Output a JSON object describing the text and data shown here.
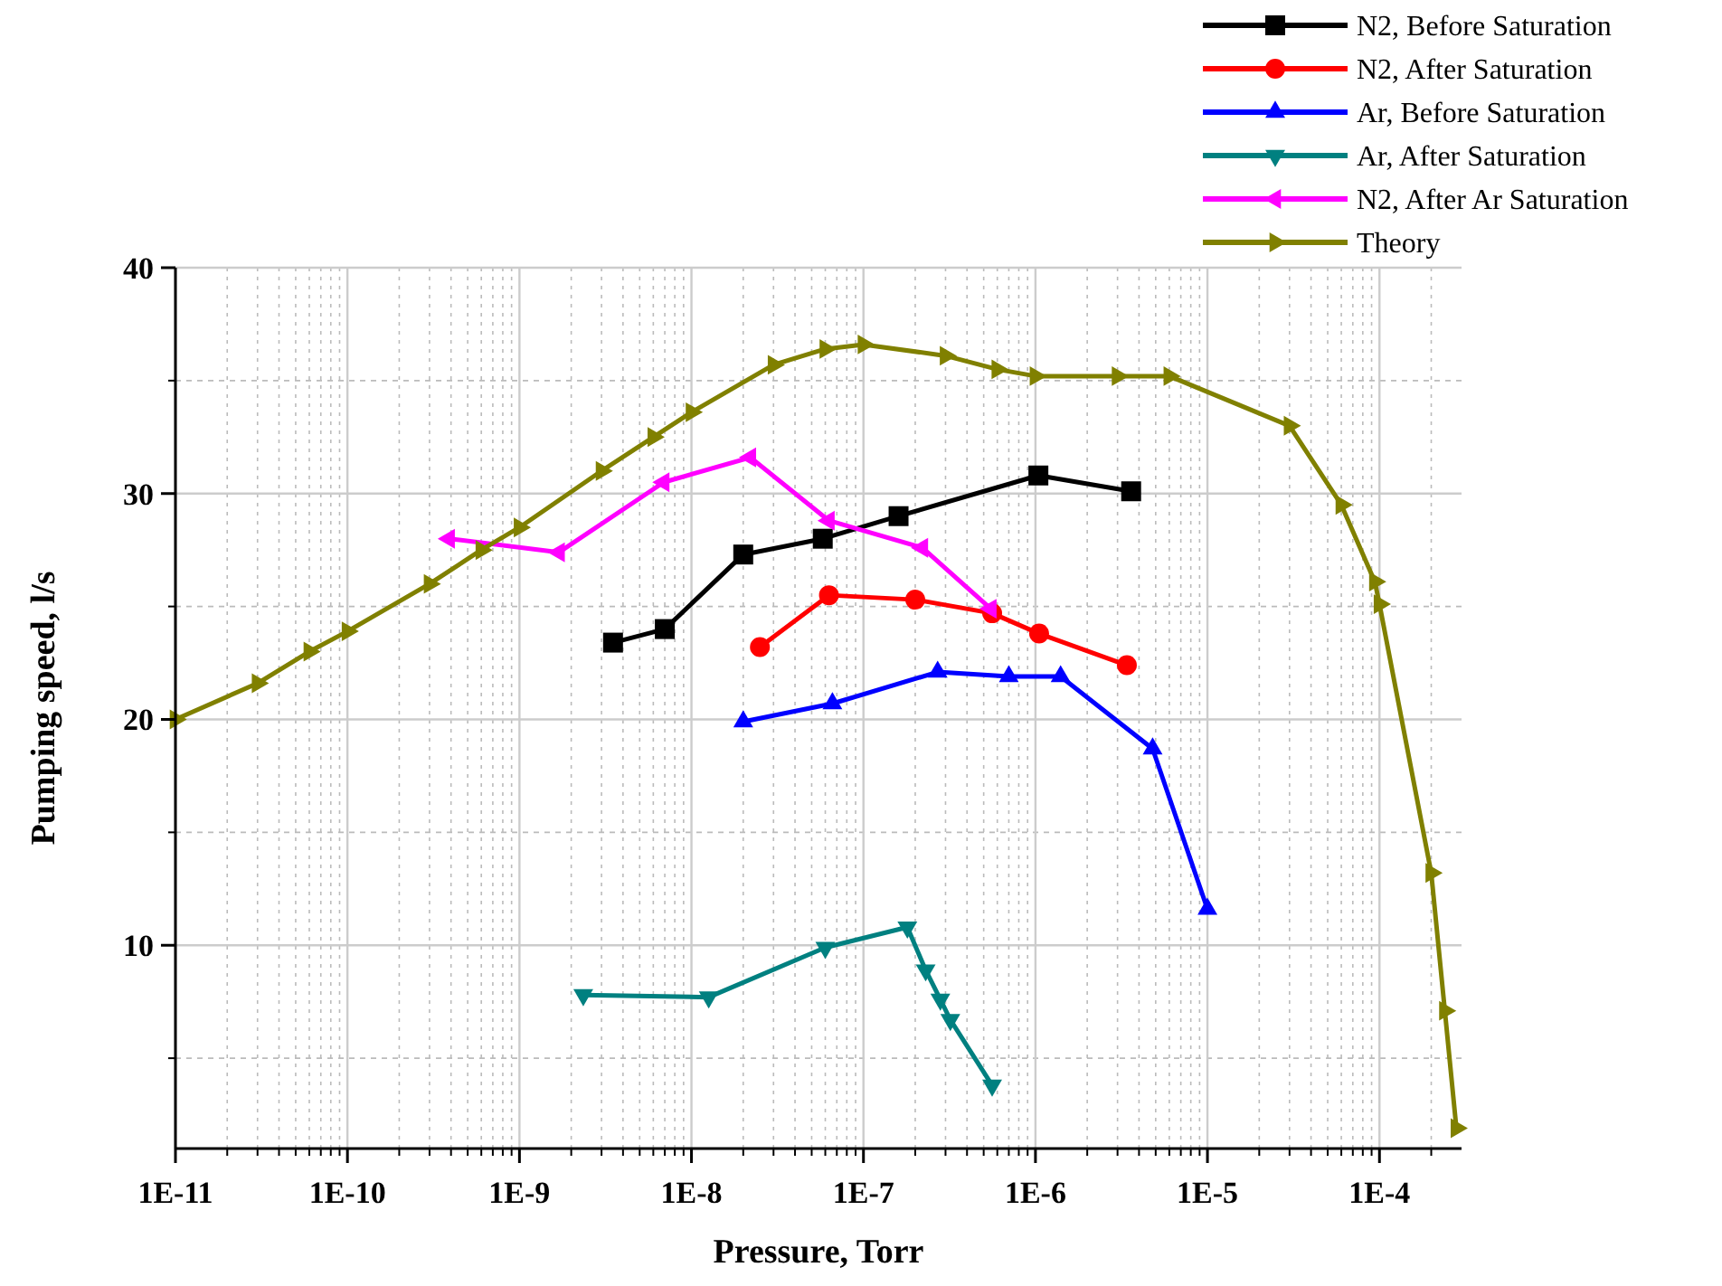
{
  "chart_data": {
    "type": "line",
    "xlabel": "Pressure, Torr",
    "ylabel": "Pumping speed, l/s",
    "log": "x",
    "grid": true,
    "legend": "top right",
    "line_style": "solid",
    "xlim": [
      1e-11,
      0.0003
    ],
    "xticks": [
      {
        "value": 1e-11,
        "label": "1E-11"
      },
      {
        "value": 1e-10,
        "label": "1E-10"
      },
      {
        "value": 1e-09,
        "label": "1E-9"
      },
      {
        "value": 1e-08,
        "label": "1E-8"
      },
      {
        "value": 1e-07,
        "label": "1E-7"
      },
      {
        "value": 1e-06,
        "label": "1E-6"
      },
      {
        "value": 1e-05,
        "label": "1E-5"
      },
      {
        "value": 0.0001,
        "label": "1E-4"
      }
    ],
    "ylim": [
      1,
      40
    ],
    "yticks": [
      10,
      20,
      30,
      40
    ],
    "series": [
      {
        "name": "N2, Before Saturation",
        "color": "#000000",
        "marker": "square",
        "x": [
          3.5e-09,
          7e-09,
          2e-08,
          5.8e-08,
          1.6e-07,
          1.04e-06,
          3.6e-06
        ],
        "values": [
          23.4,
          24.0,
          27.3,
          28.0,
          29.0,
          30.8,
          30.1
        ]
      },
      {
        "name": "N2, After Saturation",
        "color": "#ff0000",
        "marker": "circle",
        "x": [
          2.5e-08,
          6.3e-08,
          2e-07,
          5.6e-07,
          1.05e-06,
          3.4e-06
        ],
        "values": [
          23.2,
          25.5,
          25.3,
          24.7,
          23.8,
          22.4
        ]
      },
      {
        "name": "Ar, Before Saturation",
        "color": "#0000ff",
        "marker": "triangle",
        "x": [
          2e-08,
          6.6e-08,
          2.7e-07,
          7e-07,
          1.4e-06,
          4.8e-06,
          1e-05
        ],
        "values": [
          19.9,
          20.7,
          22.1,
          21.9,
          21.9,
          18.7,
          11.6
        ]
      },
      {
        "name": "Ar, After Saturation",
        "color": "#008080",
        "marker": "triangle-down",
        "x": [
          2.35e-09,
          1.26e-08,
          6e-08,
          1.8e-07,
          2.3e-07,
          2.8e-07,
          3.2e-07,
          5.6e-07
        ],
        "values": [
          7.8,
          7.7,
          9.9,
          10.8,
          8.9,
          7.6,
          6.7,
          3.8
        ]
      },
      {
        "name": "N2, After Ar Saturation",
        "color": "#ff00ff",
        "marker": "triangle-left",
        "x": [
          3.9e-10,
          1.7e-09,
          6.9e-09,
          2.2e-08,
          6.3e-08,
          2.2e-07,
          5.5e-07
        ],
        "values": [
          28.0,
          27.4,
          30.5,
          31.6,
          28.8,
          27.6,
          24.9
        ]
      },
      {
        "name": "Theory",
        "color": "#808000",
        "marker": "triangle-right",
        "x": [
          1e-11,
          3e-11,
          6e-11,
          1e-10,
          3e-10,
          6e-10,
          1e-09,
          3e-09,
          6e-09,
          1e-08,
          3e-08,
          6e-08,
          1e-07,
          3e-07,
          6e-07,
          1e-06,
          3e-06,
          6e-06,
          3e-05,
          6e-05,
          9.4e-05,
          0.0001,
          0.0002,
          0.00024,
          0.00028
        ],
        "values": [
          20.0,
          21.6,
          23.0,
          23.9,
          26.0,
          27.5,
          28.5,
          31.0,
          32.5,
          33.6,
          35.7,
          36.4,
          36.6,
          36.1,
          35.5,
          35.2,
          35.2,
          35.2,
          33.0,
          29.5,
          26.1,
          25.1,
          13.2,
          7.1,
          1.9
        ]
      }
    ]
  }
}
